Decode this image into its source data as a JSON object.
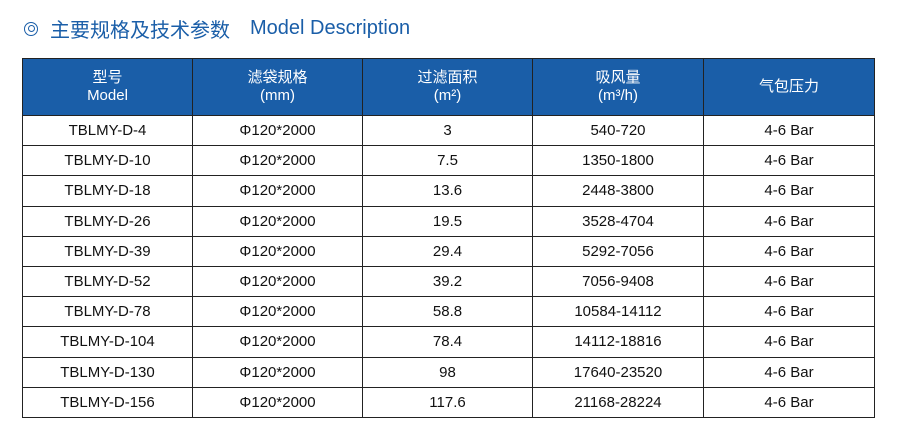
{
  "title": {
    "cn": "主要规格及技术参数",
    "en": "Model Description"
  },
  "table": {
    "headers": [
      {
        "line1": "型号",
        "line2": "Model"
      },
      {
        "line1": "滤袋规格",
        "line2": "(mm)"
      },
      {
        "line1": "过滤面积",
        "line2": "(m²)"
      },
      {
        "line1": "吸风量",
        "line2": "(m³/h)"
      },
      {
        "line1": "气包压力",
        "line2": ""
      }
    ],
    "rows": [
      [
        "TBLMY-D-4",
        "Φ120*2000",
        "3",
        "540-720",
        "4-6 Bar"
      ],
      [
        "TBLMY-D-10",
        "Φ120*2000",
        "7.5",
        "1350-1800",
        "4-6 Bar"
      ],
      [
        "TBLMY-D-18",
        "Φ120*2000",
        "13.6",
        "2448-3800",
        "4-6 Bar"
      ],
      [
        "TBLMY-D-26",
        "Φ120*2000",
        "19.5",
        "3528-4704",
        "4-6 Bar"
      ],
      [
        "TBLMY-D-39",
        "Φ120*2000",
        "29.4",
        "5292-7056",
        "4-6 Bar"
      ],
      [
        "TBLMY-D-52",
        "Φ120*2000",
        "39.2",
        "7056-9408",
        "4-6 Bar"
      ],
      [
        "TBLMY-D-78",
        "Φ120*2000",
        "58.8",
        "10584-14112",
        "4-6 Bar"
      ],
      [
        "TBLMY-D-104",
        "Φ120*2000",
        "78.4",
        "14112-18816",
        "4-6 Bar"
      ],
      [
        "TBLMY-D-130",
        "Φ120*2000",
        "98",
        "17640-23520",
        "4-6 Bar"
      ],
      [
        "TBLMY-D-156",
        "Φ120*2000",
        "117.6",
        "21168-28224",
        "4-6 Bar"
      ]
    ]
  }
}
